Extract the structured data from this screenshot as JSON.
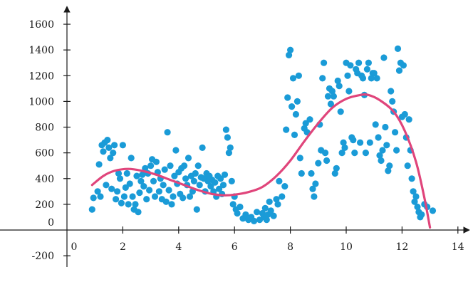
{
  "chart_data": {
    "type": "scatter",
    "title": "",
    "xlabel": "",
    "ylabel": "",
    "xlim": [
      -2.4,
      15.0
    ],
    "ylim": [
      -300,
      1700
    ],
    "x_ticks": [
      {
        "value": 0,
        "label": "0"
      },
      {
        "value": 2,
        "label": "2"
      },
      {
        "value": 4,
        "label": "4"
      },
      {
        "value": 6,
        "label": "6"
      },
      {
        "value": 8,
        "label": "8"
      },
      {
        "value": 10,
        "label": "10"
      },
      {
        "value": 12,
        "label": "12"
      },
      {
        "value": 14,
        "label": "14"
      }
    ],
    "y_ticks": [
      {
        "value": -200,
        "label": "-200"
      },
      {
        "value": 0,
        "label": "0"
      },
      {
        "value": 200,
        "label": "200"
      },
      {
        "value": 400,
        "label": "400"
      },
      {
        "value": 600,
        "label": "600"
      },
      {
        "value": 800,
        "label": "800"
      },
      {
        "value": 1000,
        "label": "1000"
      },
      {
        "value": 1200,
        "label": "1200"
      },
      {
        "value": 1400,
        "label": "1400"
      },
      {
        "value": 1600,
        "label": "1600"
      }
    ],
    "grid": false,
    "legend": "none",
    "colors": {
      "points": "#1a9bd7",
      "curve": "#e0457b",
      "axes": "#1a1a1a"
    },
    "series": [
      {
        "kind": "scatter",
        "points": [
          [
            0.9,
            160
          ],
          [
            0.95,
            250
          ],
          [
            1.1,
            300
          ],
          [
            1.15,
            510
          ],
          [
            1.2,
            260
          ],
          [
            1.25,
            660
          ],
          [
            1.3,
            610
          ],
          [
            1.35,
            680
          ],
          [
            1.4,
            350
          ],
          [
            1.45,
            700
          ],
          [
            1.5,
            640
          ],
          [
            1.55,
            560
          ],
          [
            1.6,
            320
          ],
          [
            1.65,
            600
          ],
          [
            1.7,
            660
          ],
          [
            1.75,
            240
          ],
          [
            1.8,
            300
          ],
          [
            1.85,
            440
          ],
          [
            1.9,
            400
          ],
          [
            1.95,
            210
          ],
          [
            2.0,
            660
          ],
          [
            2.05,
            260
          ],
          [
            2.1,
            330
          ],
          [
            2.15,
            440
          ],
          [
            2.2,
            200
          ],
          [
            2.25,
            360
          ],
          [
            2.3,
            560
          ],
          [
            2.35,
            260
          ],
          [
            2.4,
            160
          ],
          [
            2.45,
            200
          ],
          [
            2.5,
            420
          ],
          [
            2.55,
            140
          ],
          [
            2.6,
            290
          ],
          [
            2.65,
            380
          ],
          [
            2.7,
            430
          ],
          [
            2.75,
            340
          ],
          [
            2.8,
            480
          ],
          [
            2.85,
            240
          ],
          [
            2.9,
            440
          ],
          [
            2.95,
            310
          ],
          [
            3.0,
            500
          ],
          [
            3.05,
            550
          ],
          [
            3.1,
            380
          ],
          [
            3.15,
            260
          ],
          [
            3.2,
            530
          ],
          [
            3.25,
            450
          ],
          [
            3.3,
            300
          ],
          [
            3.35,
            400
          ],
          [
            3.4,
            240
          ],
          [
            3.45,
            350
          ],
          [
            3.5,
            470
          ],
          [
            3.55,
            220
          ],
          [
            3.6,
            760
          ],
          [
            3.65,
            310
          ],
          [
            3.7,
            500
          ],
          [
            3.75,
            200
          ],
          [
            3.8,
            260
          ],
          [
            3.85,
            420
          ],
          [
            3.9,
            620
          ],
          [
            3.95,
            360
          ],
          [
            4.0,
            450
          ],
          [
            4.05,
            280
          ],
          [
            4.1,
            480
          ],
          [
            4.15,
            250
          ],
          [
            4.2,
            500
          ],
          [
            4.25,
            400
          ],
          [
            4.3,
            350
          ],
          [
            4.35,
            560
          ],
          [
            4.4,
            260
          ],
          [
            4.45,
            420
          ],
          [
            4.5,
            300
          ],
          [
            4.55,
            380
          ],
          [
            4.6,
            440
          ],
          [
            4.65,
            160
          ],
          [
            4.7,
            500
          ],
          [
            4.75,
            350
          ],
          [
            4.8,
            410
          ],
          [
            4.85,
            640
          ],
          [
            4.9,
            400
          ],
          [
            4.95,
            300
          ],
          [
            5.0,
            440
          ],
          [
            5.05,
            380
          ],
          [
            5.1,
            420
          ],
          [
            5.15,
            340
          ],
          [
            5.2,
            390
          ],
          [
            5.25,
            300
          ],
          [
            5.3,
            370
          ],
          [
            5.35,
            260
          ],
          [
            5.4,
            420
          ],
          [
            5.45,
            320
          ],
          [
            5.5,
            400
          ],
          [
            5.55,
            280
          ],
          [
            5.6,
            350
          ],
          [
            5.65,
            430
          ],
          [
            5.7,
            780
          ],
          [
            5.75,
            720
          ],
          [
            5.8,
            600
          ],
          [
            5.85,
            640
          ],
          [
            5.9,
            380
          ],
          [
            5.95,
            200
          ],
          [
            6.0,
            260
          ],
          [
            6.05,
            160
          ],
          [
            6.1,
            130
          ],
          [
            6.2,
            180
          ],
          [
            6.3,
            90
          ],
          [
            6.4,
            120
          ],
          [
            6.5,
            80
          ],
          [
            6.6,
            100
          ],
          [
            6.7,
            70
          ],
          [
            6.8,
            140
          ],
          [
            6.9,
            80
          ],
          [
            7.0,
            130
          ],
          [
            7.05,
            100
          ],
          [
            7.1,
            170
          ],
          [
            7.15,
            80
          ],
          [
            7.2,
            120
          ],
          [
            7.25,
            220
          ],
          [
            7.3,
            150
          ],
          [
            7.4,
            110
          ],
          [
            7.5,
            240
          ],
          [
            7.55,
            200
          ],
          [
            7.6,
            380
          ],
          [
            7.7,
            260
          ],
          [
            7.8,
            340
          ],
          [
            7.85,
            780
          ],
          [
            7.9,
            1030
          ],
          [
            7.95,
            1360
          ],
          [
            8.0,
            1400
          ],
          [
            8.05,
            960
          ],
          [
            8.1,
            1180
          ],
          [
            8.15,
            740
          ],
          [
            8.2,
            900
          ],
          [
            8.25,
            1000
          ],
          [
            8.3,
            1200
          ],
          [
            8.35,
            560
          ],
          [
            8.4,
            440
          ],
          [
            8.5,
            790
          ],
          [
            8.55,
            830
          ],
          [
            8.6,
            760
          ],
          [
            8.7,
            860
          ],
          [
            8.75,
            440
          ],
          [
            8.8,
            320
          ],
          [
            8.85,
            260
          ],
          [
            8.9,
            360
          ],
          [
            9.0,
            520
          ],
          [
            9.05,
            820
          ],
          [
            9.1,
            620
          ],
          [
            9.15,
            1180
          ],
          [
            9.2,
            1300
          ],
          [
            9.25,
            600
          ],
          [
            9.3,
            540
          ],
          [
            9.35,
            1040
          ],
          [
            9.4,
            1100
          ],
          [
            9.45,
            980
          ],
          [
            9.5,
            1080
          ],
          [
            9.55,
            1040
          ],
          [
            9.6,
            440
          ],
          [
            9.65,
            480
          ],
          [
            9.7,
            1160
          ],
          [
            9.75,
            1120
          ],
          [
            9.8,
            920
          ],
          [
            9.85,
            600
          ],
          [
            9.9,
            680
          ],
          [
            9.95,
            640
          ],
          [
            10.0,
            1300
          ],
          [
            10.05,
            1200
          ],
          [
            10.1,
            1080
          ],
          [
            10.15,
            1280
          ],
          [
            10.2,
            720
          ],
          [
            10.25,
            700
          ],
          [
            10.3,
            600
          ],
          [
            10.35,
            1250
          ],
          [
            10.4,
            1220
          ],
          [
            10.45,
            1300
          ],
          [
            10.5,
            680
          ],
          [
            10.55,
            1200
          ],
          [
            10.6,
            1180
          ],
          [
            10.65,
            1050
          ],
          [
            10.7,
            600
          ],
          [
            10.75,
            1250
          ],
          [
            10.8,
            1300
          ],
          [
            10.85,
            680
          ],
          [
            10.9,
            1180
          ],
          [
            10.95,
            1220
          ],
          [
            11.0,
            1220
          ],
          [
            11.05,
            820
          ],
          [
            11.1,
            1180
          ],
          [
            11.15,
            720
          ],
          [
            11.2,
            580
          ],
          [
            11.25,
            540
          ],
          [
            11.3,
            620
          ],
          [
            11.35,
            1340
          ],
          [
            11.4,
            800
          ],
          [
            11.45,
            660
          ],
          [
            11.5,
            460
          ],
          [
            11.55,
            500
          ],
          [
            11.6,
            1080
          ],
          [
            11.65,
            1000
          ],
          [
            11.7,
            920
          ],
          [
            11.75,
            760
          ],
          [
            11.8,
            620
          ],
          [
            11.85,
            1410
          ],
          [
            11.9,
            1240
          ],
          [
            11.95,
            1300
          ],
          [
            12.0,
            880
          ],
          [
            12.05,
            1280
          ],
          [
            12.1,
            900
          ],
          [
            12.15,
            720
          ],
          [
            12.2,
            500
          ],
          [
            12.25,
            860
          ],
          [
            12.3,
            620
          ],
          [
            12.35,
            400
          ],
          [
            12.4,
            300
          ],
          [
            12.45,
            220
          ],
          [
            12.5,
            260
          ],
          [
            12.55,
            180
          ],
          [
            12.6,
            140
          ],
          [
            12.65,
            100
          ],
          [
            12.7,
            120
          ],
          [
            12.8,
            200
          ],
          [
            12.9,
            180
          ],
          [
            13.1,
            150
          ]
        ]
      },
      {
        "kind": "line",
        "points": [
          [
            0.9,
            350
          ],
          [
            1.3,
            420
          ],
          [
            1.7,
            460
          ],
          [
            2.2,
            475
          ],
          [
            2.7,
            460
          ],
          [
            3.2,
            430
          ],
          [
            3.7,
            390
          ],
          [
            4.2,
            350
          ],
          [
            4.7,
            310
          ],
          [
            5.2,
            280
          ],
          [
            5.6,
            270
          ],
          [
            6.0,
            275
          ],
          [
            6.5,
            295
          ],
          [
            7.0,
            335
          ],
          [
            7.5,
            420
          ],
          [
            8.0,
            540
          ],
          [
            8.5,
            690
          ],
          [
            9.0,
            830
          ],
          [
            9.5,
            950
          ],
          [
            10.0,
            1020
          ],
          [
            10.5,
            1050
          ],
          [
            10.8,
            1050
          ],
          [
            11.2,
            1010
          ],
          [
            11.7,
            920
          ],
          [
            12.1,
            770
          ],
          [
            12.5,
            530
          ],
          [
            12.8,
            250
          ],
          [
            13.0,
            20
          ]
        ]
      }
    ]
  }
}
